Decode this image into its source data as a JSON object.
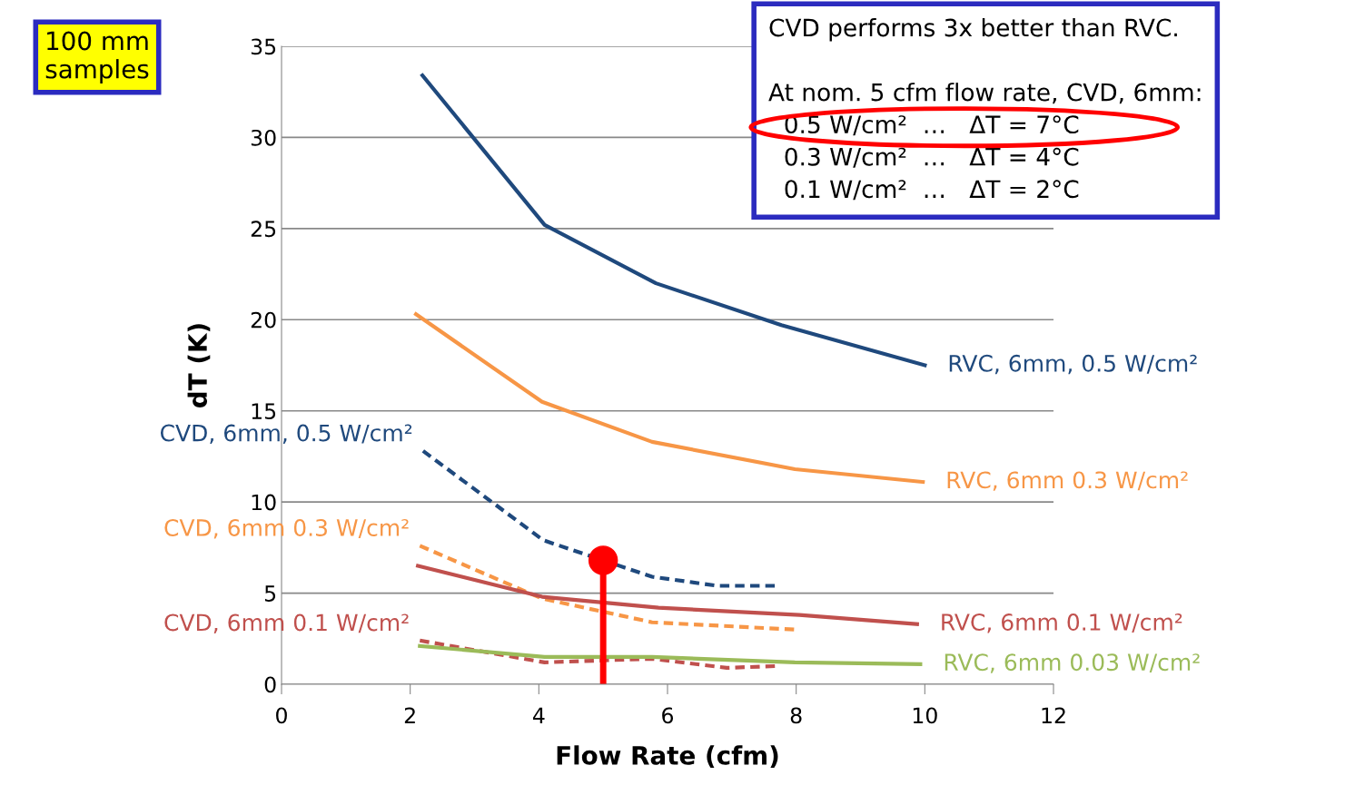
{
  "chart_data": {
    "type": "line",
    "xlabel": "Flow Rate (cfm)",
    "ylabel": "dT (K)",
    "xlim": [
      0,
      12
    ],
    "xticks": [
      0,
      2,
      4,
      6,
      8,
      10,
      12
    ],
    "ylim": [
      0,
      35
    ],
    "yticks": [
      0,
      5,
      10,
      15,
      20,
      25,
      30,
      35
    ],
    "grid": "y",
    "legend": false,
    "marker": "none",
    "series": [
      {
        "name": "RVC, 6mm, 0.5 W/cm²",
        "color": "#1f497d",
        "line_style": "solid",
        "x": [
          2.19,
          4.09,
          5.82,
          7.77,
          10.0
        ],
        "values": [
          33.4,
          25.2,
          22.0,
          19.7,
          17.5
        ]
      },
      {
        "name": "RVC, 6mm 0.3 W/cm²",
        "color": "#f79646",
        "line_style": "solid",
        "x": [
          2.09,
          4.05,
          5.76,
          7.98,
          9.97
        ],
        "values": [
          20.3,
          15.5,
          13.3,
          11.8,
          11.1
        ]
      },
      {
        "name": "CVD, 6mm, 0.5 W/cm²",
        "color": "#1f497d",
        "line_style": "dashed",
        "x": [
          2.2,
          4.07,
          5.76,
          6.78,
          7.7
        ],
        "values": [
          12.8,
          7.9,
          5.9,
          5.4,
          5.4
        ]
      },
      {
        "name": "CVD, 6mm 0.3 W/cm²",
        "color": "#f79646",
        "line_style": "dashed",
        "x": [
          2.15,
          4.05,
          5.76,
          7.98
        ],
        "values": [
          7.6,
          4.7,
          3.4,
          3.0
        ]
      },
      {
        "name": "RVC, 6mm 0.1 W/cm²",
        "color": "#c0504d",
        "line_style": "solid",
        "x": [
          2.12,
          4.05,
          5.86,
          8.05,
          9.88
        ],
        "values": [
          6.5,
          4.8,
          4.2,
          3.8,
          3.3
        ]
      },
      {
        "name": "CVD, 6mm 0.1 W/cm²",
        "color": "#c0504d",
        "line_style": "dashed",
        "x": [
          2.15,
          4.09,
          5.76,
          6.92,
          7.7
        ],
        "values": [
          2.4,
          1.2,
          1.4,
          0.9,
          1.0
        ]
      },
      {
        "name": "RVC, 6mm 0.03 W/cm²",
        "color": "#9bbb59",
        "line_style": "solid",
        "x": [
          2.15,
          4.09,
          5.76,
          7.98,
          9.93
        ],
        "values": [
          2.1,
          1.5,
          1.5,
          1.2,
          1.1
        ]
      },
      {
        "type": "lollipop",
        "marker": "circle",
        "color": "#ff0000",
        "x": [
          5
        ],
        "values": [
          6.8
        ]
      }
    ],
    "annotations": [
      "100 mm\nsamples",
      "CVD performs 3x better than RVC.\n\nAt nom. 5 cfm flow rate, CVD, 6mm:\n  0.5 W/cm²  …   ΔT = 7°C\n  0.3 W/cm²  …   ΔT = 4°C\n  0.1 W/cm²  …   ΔT = 2°C"
    ]
  }
}
